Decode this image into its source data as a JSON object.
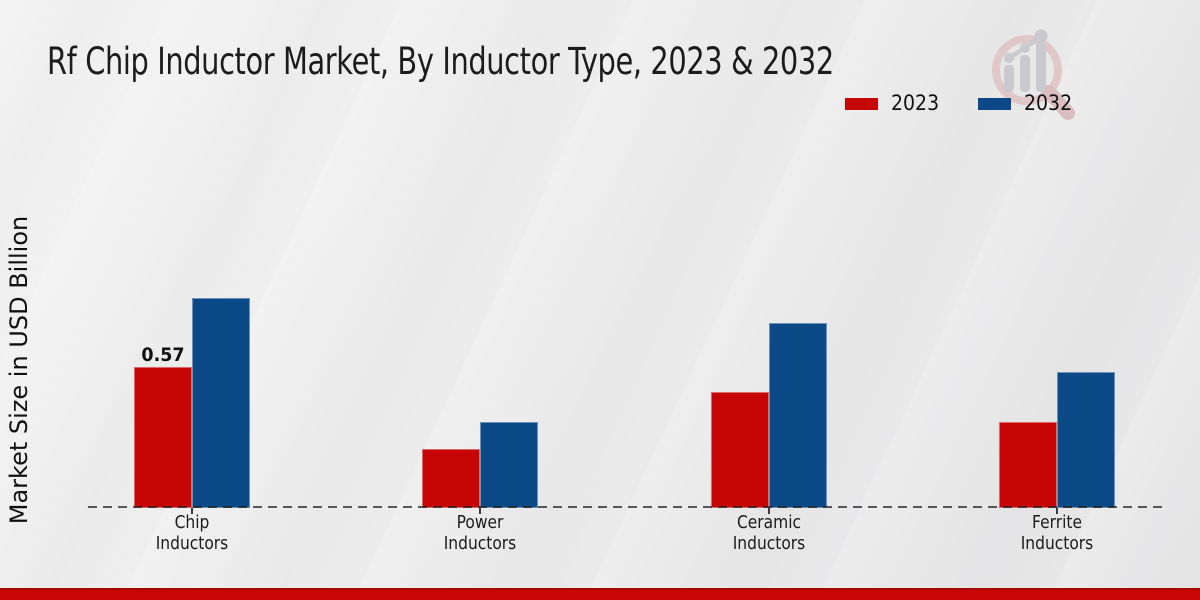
{
  "chart_data": {
    "type": "bar",
    "title": "Rf Chip Inductor Market, By Inductor Type, 2023 & 2032",
    "ylabel": "Market Size in USD Billion",
    "xlabel": "",
    "categories": [
      "Chip\nInductors",
      "Power\nInductors",
      "Ceramic\nInductors",
      "Ferrite\nInductors"
    ],
    "series": [
      {
        "name": "2023",
        "color": "#c60505",
        "values": [
          0.57,
          0.24,
          0.47,
          0.35
        ]
      },
      {
        "name": "2032",
        "color": "#0c4a87",
        "values": [
          0.85,
          0.35,
          0.75,
          0.55
        ]
      }
    ],
    "data_labels": [
      {
        "series": 0,
        "category": 0,
        "text": "0.57"
      }
    ],
    "ylim": [
      0,
      1.0
    ],
    "grid": false,
    "legend_position": "top-right",
    "zero_line_style": "dashed"
  },
  "logo": {
    "name": "magnifier-growth-chart-logo"
  },
  "footer": {
    "bar_color": "#c90707"
  }
}
